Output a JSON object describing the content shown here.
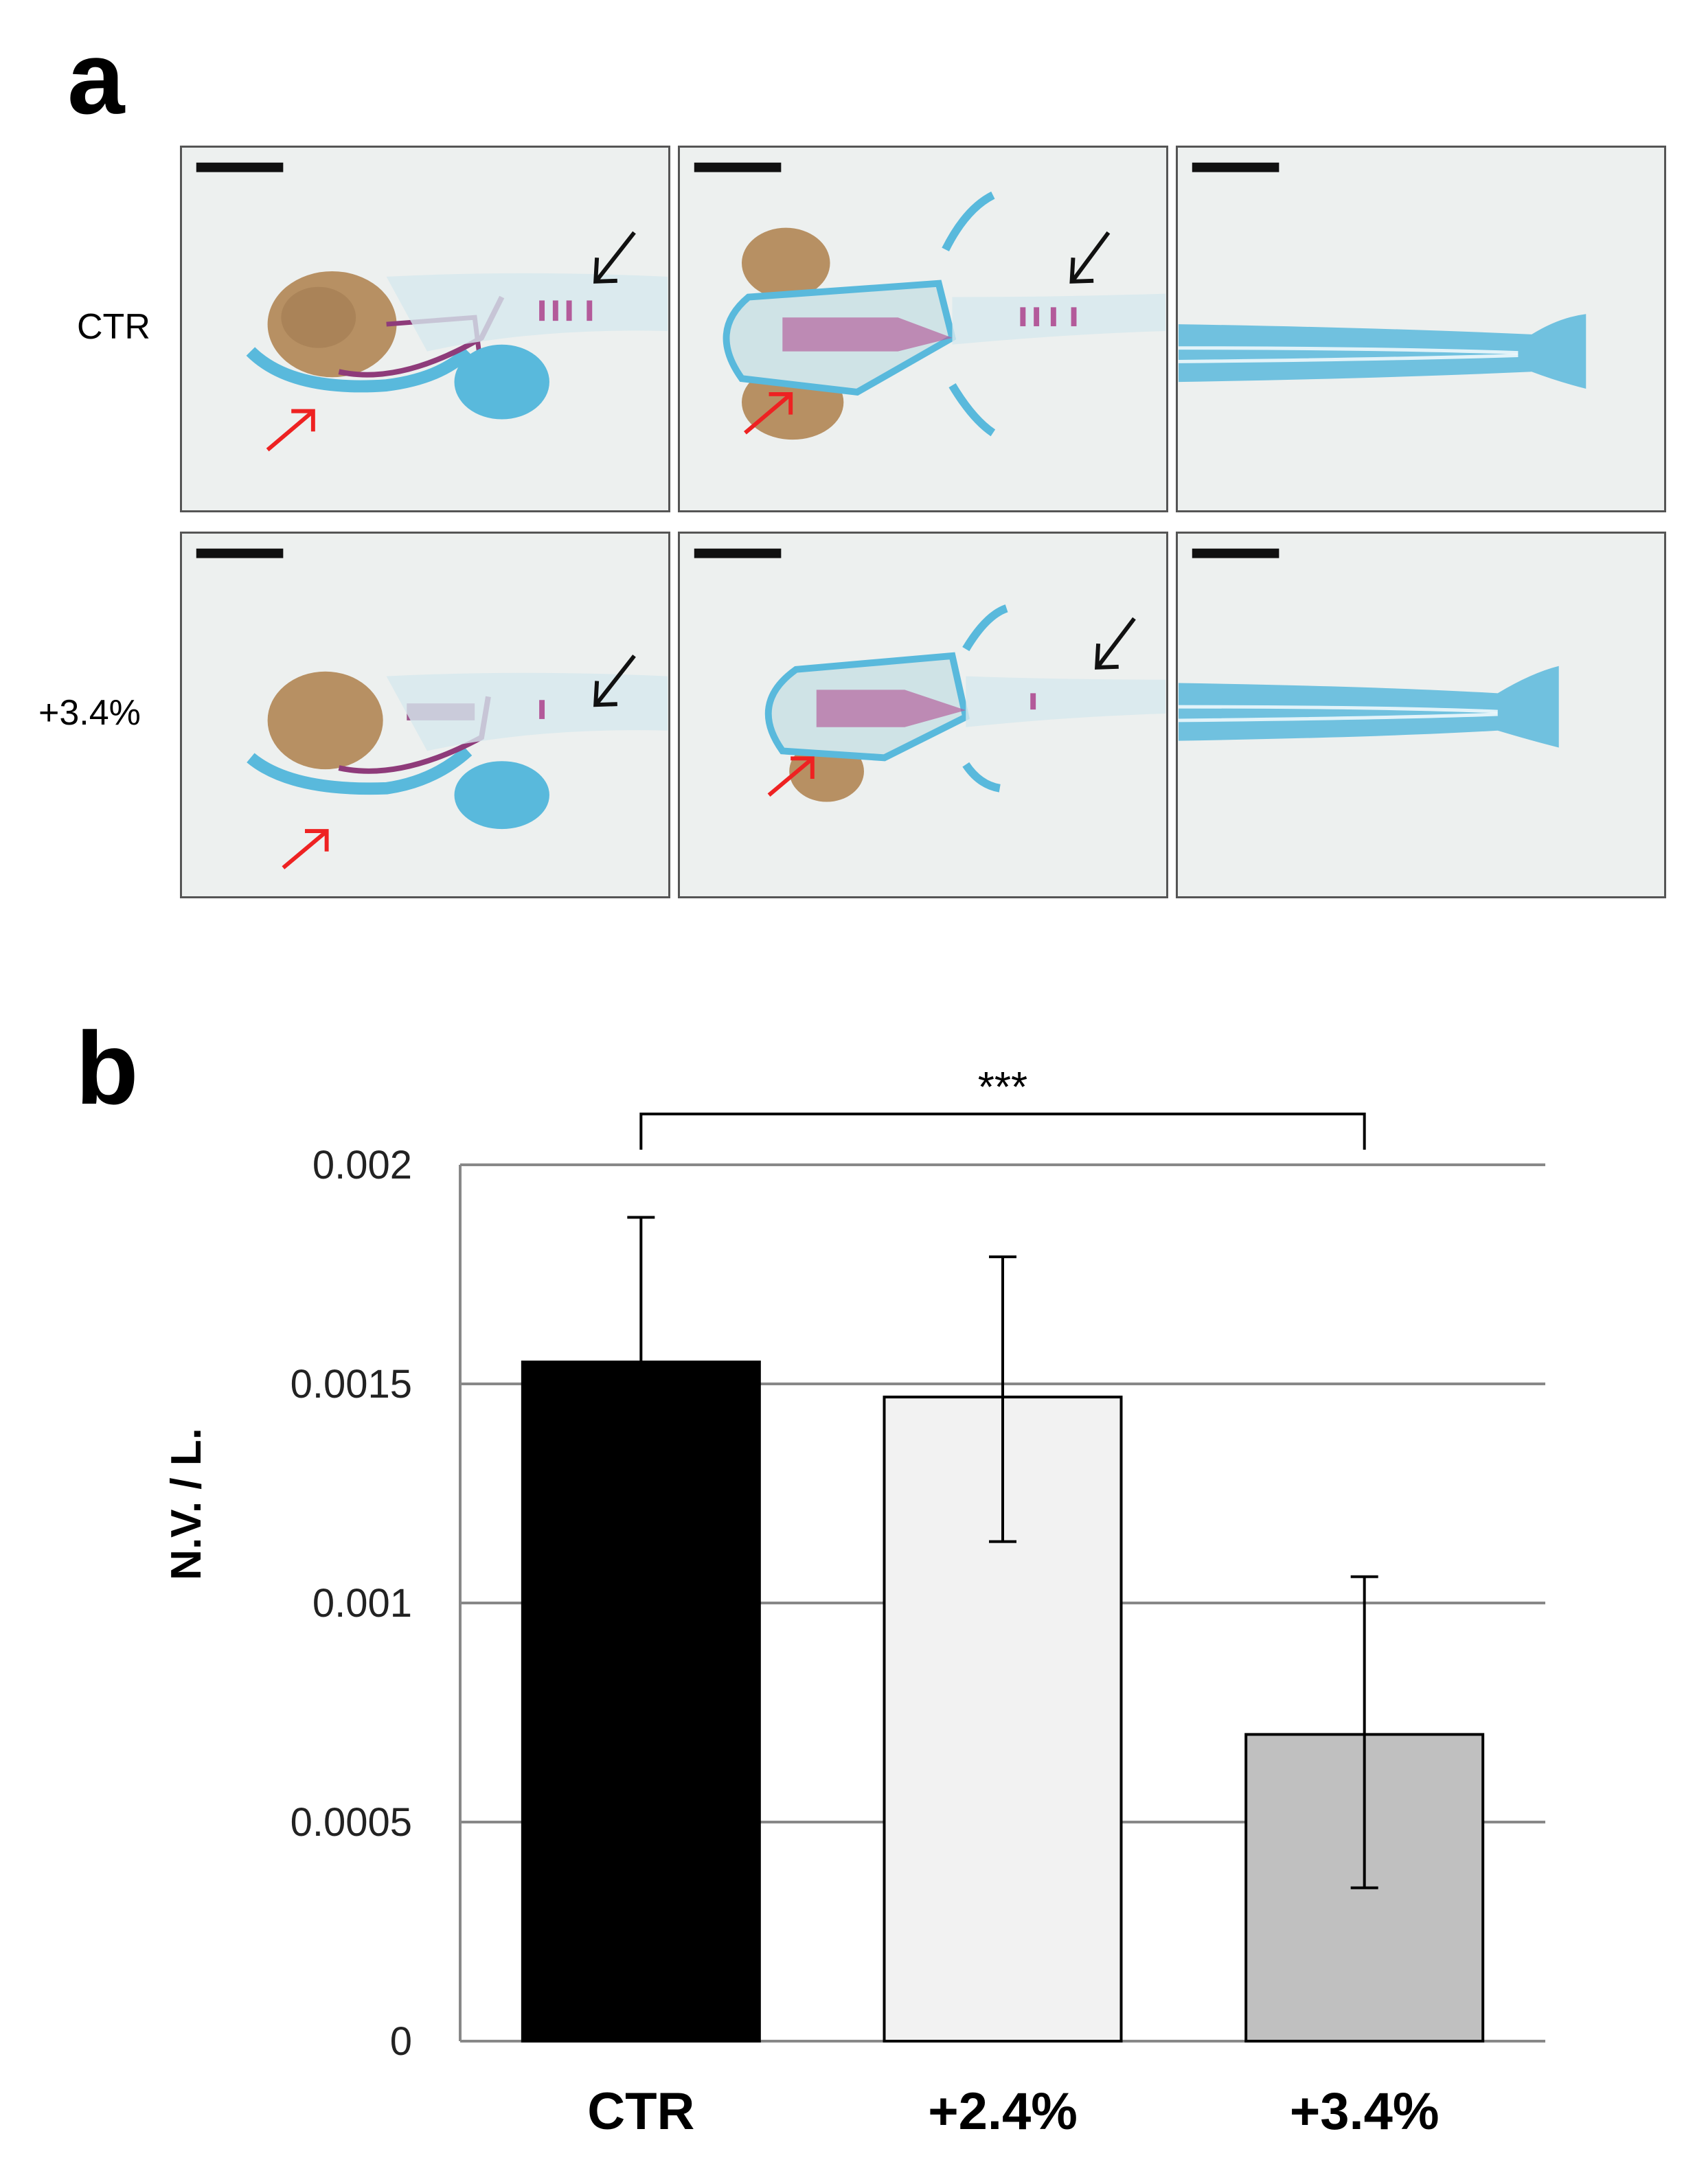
{
  "panels": {
    "a": "a",
    "b": "b"
  },
  "panel_a": {
    "rows": [
      {
        "label": "CTR"
      },
      {
        "label": "+3.4%"
      }
    ],
    "views": [
      "lateral",
      "ventral",
      "tail"
    ],
    "colors": {
      "cartilage_blue": "#59b9dc",
      "bone_purple": "#8e3b7a",
      "eye_brown": "#b79063",
      "background": "#edf0ef",
      "red_arrow": "#ee2222",
      "black_arrow": "#111111"
    }
  },
  "chart_data": {
    "type": "bar",
    "categories": [
      "CTR",
      "+2.4%",
      "+3.4%"
    ],
    "values": [
      0.00155,
      0.00147,
      0.0007
    ],
    "errors_low": [
      0.00124,
      0.00114,
      0.00035
    ],
    "errors_high": [
      0.00188,
      0.00179,
      0.00106
    ],
    "bar_colors": [
      "#000000",
      "#f2f2f2",
      "#c0c0c0"
    ],
    "ylabel": "N.V. / L.",
    "ylim": [
      0,
      0.002
    ],
    "yticks": [
      {
        "value": 0,
        "label": "0"
      },
      {
        "value": 0.0005,
        "label": "0.0005"
      },
      {
        "value": 0.001,
        "label": "0.001"
      },
      {
        "value": 0.0015,
        "label": "0.0015"
      },
      {
        "value": 0.002,
        "label": "0.002"
      }
    ],
    "grid": true,
    "significance": {
      "from": 0,
      "to": 2,
      "label": "***"
    }
  }
}
